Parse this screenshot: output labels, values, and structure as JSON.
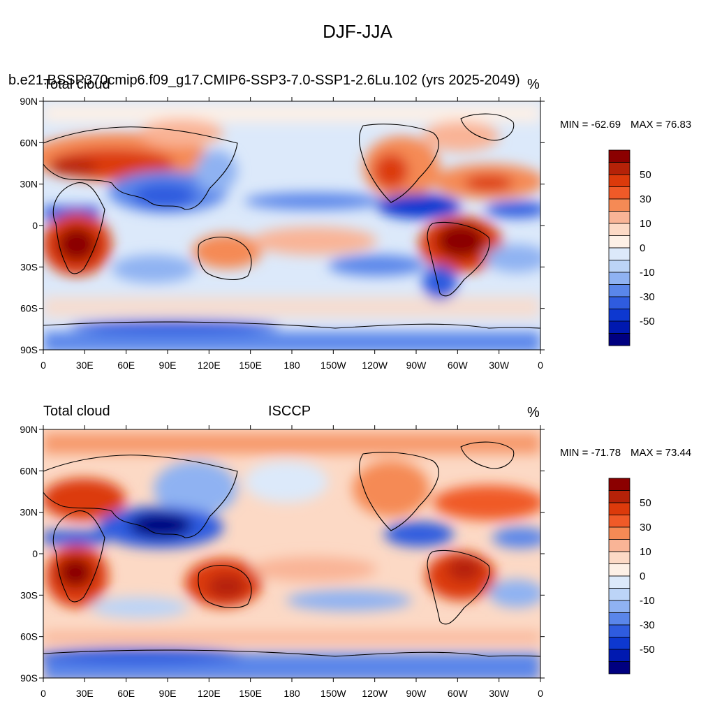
{
  "title": "DJF-JJA",
  "panels": [
    {
      "header_left": "Total cloud",
      "header_case": "b.e21.BSSP370cmip6.f09_g17.CMIP6-SSP3-7.0-SSP1-2.6Lu.102 (yrs 2025-2049)",
      "header_center": "",
      "header_right": "%",
      "min_label": "MIN = -62.69",
      "max_label": "MAX =  76.83"
    },
    {
      "header_left": "Total cloud",
      "header_case": "",
      "header_center": "ISCCP",
      "header_right": "%",
      "min_label": "MIN = -71.78",
      "max_label": "MAX =  73.44"
    }
  ],
  "lat_ticks": [
    "90N",
    "60N",
    "30N",
    "0",
    "30S",
    "60S",
    "90S"
  ],
  "lon_ticks": [
    "0",
    "30E",
    "60E",
    "90E",
    "120E",
    "150E",
    "180",
    "150W",
    "120W",
    "90W",
    "60W",
    "30W",
    "0"
  ],
  "colorbar": {
    "labels": [
      "50",
      "30",
      "10",
      "0",
      "-10",
      "-30",
      "-50"
    ],
    "colors": [
      "#8b0000",
      "#b52208",
      "#dc3a0b",
      "#f05a28",
      "#f58a55",
      "#f9b496",
      "#fcd9c5",
      "#fdf0e6",
      "#dce9fa",
      "#bcd4f7",
      "#8fb2f2",
      "#5a86ea",
      "#2f5cdf",
      "#0d38d0",
      "#0019b0",
      "#000080"
    ]
  }
}
